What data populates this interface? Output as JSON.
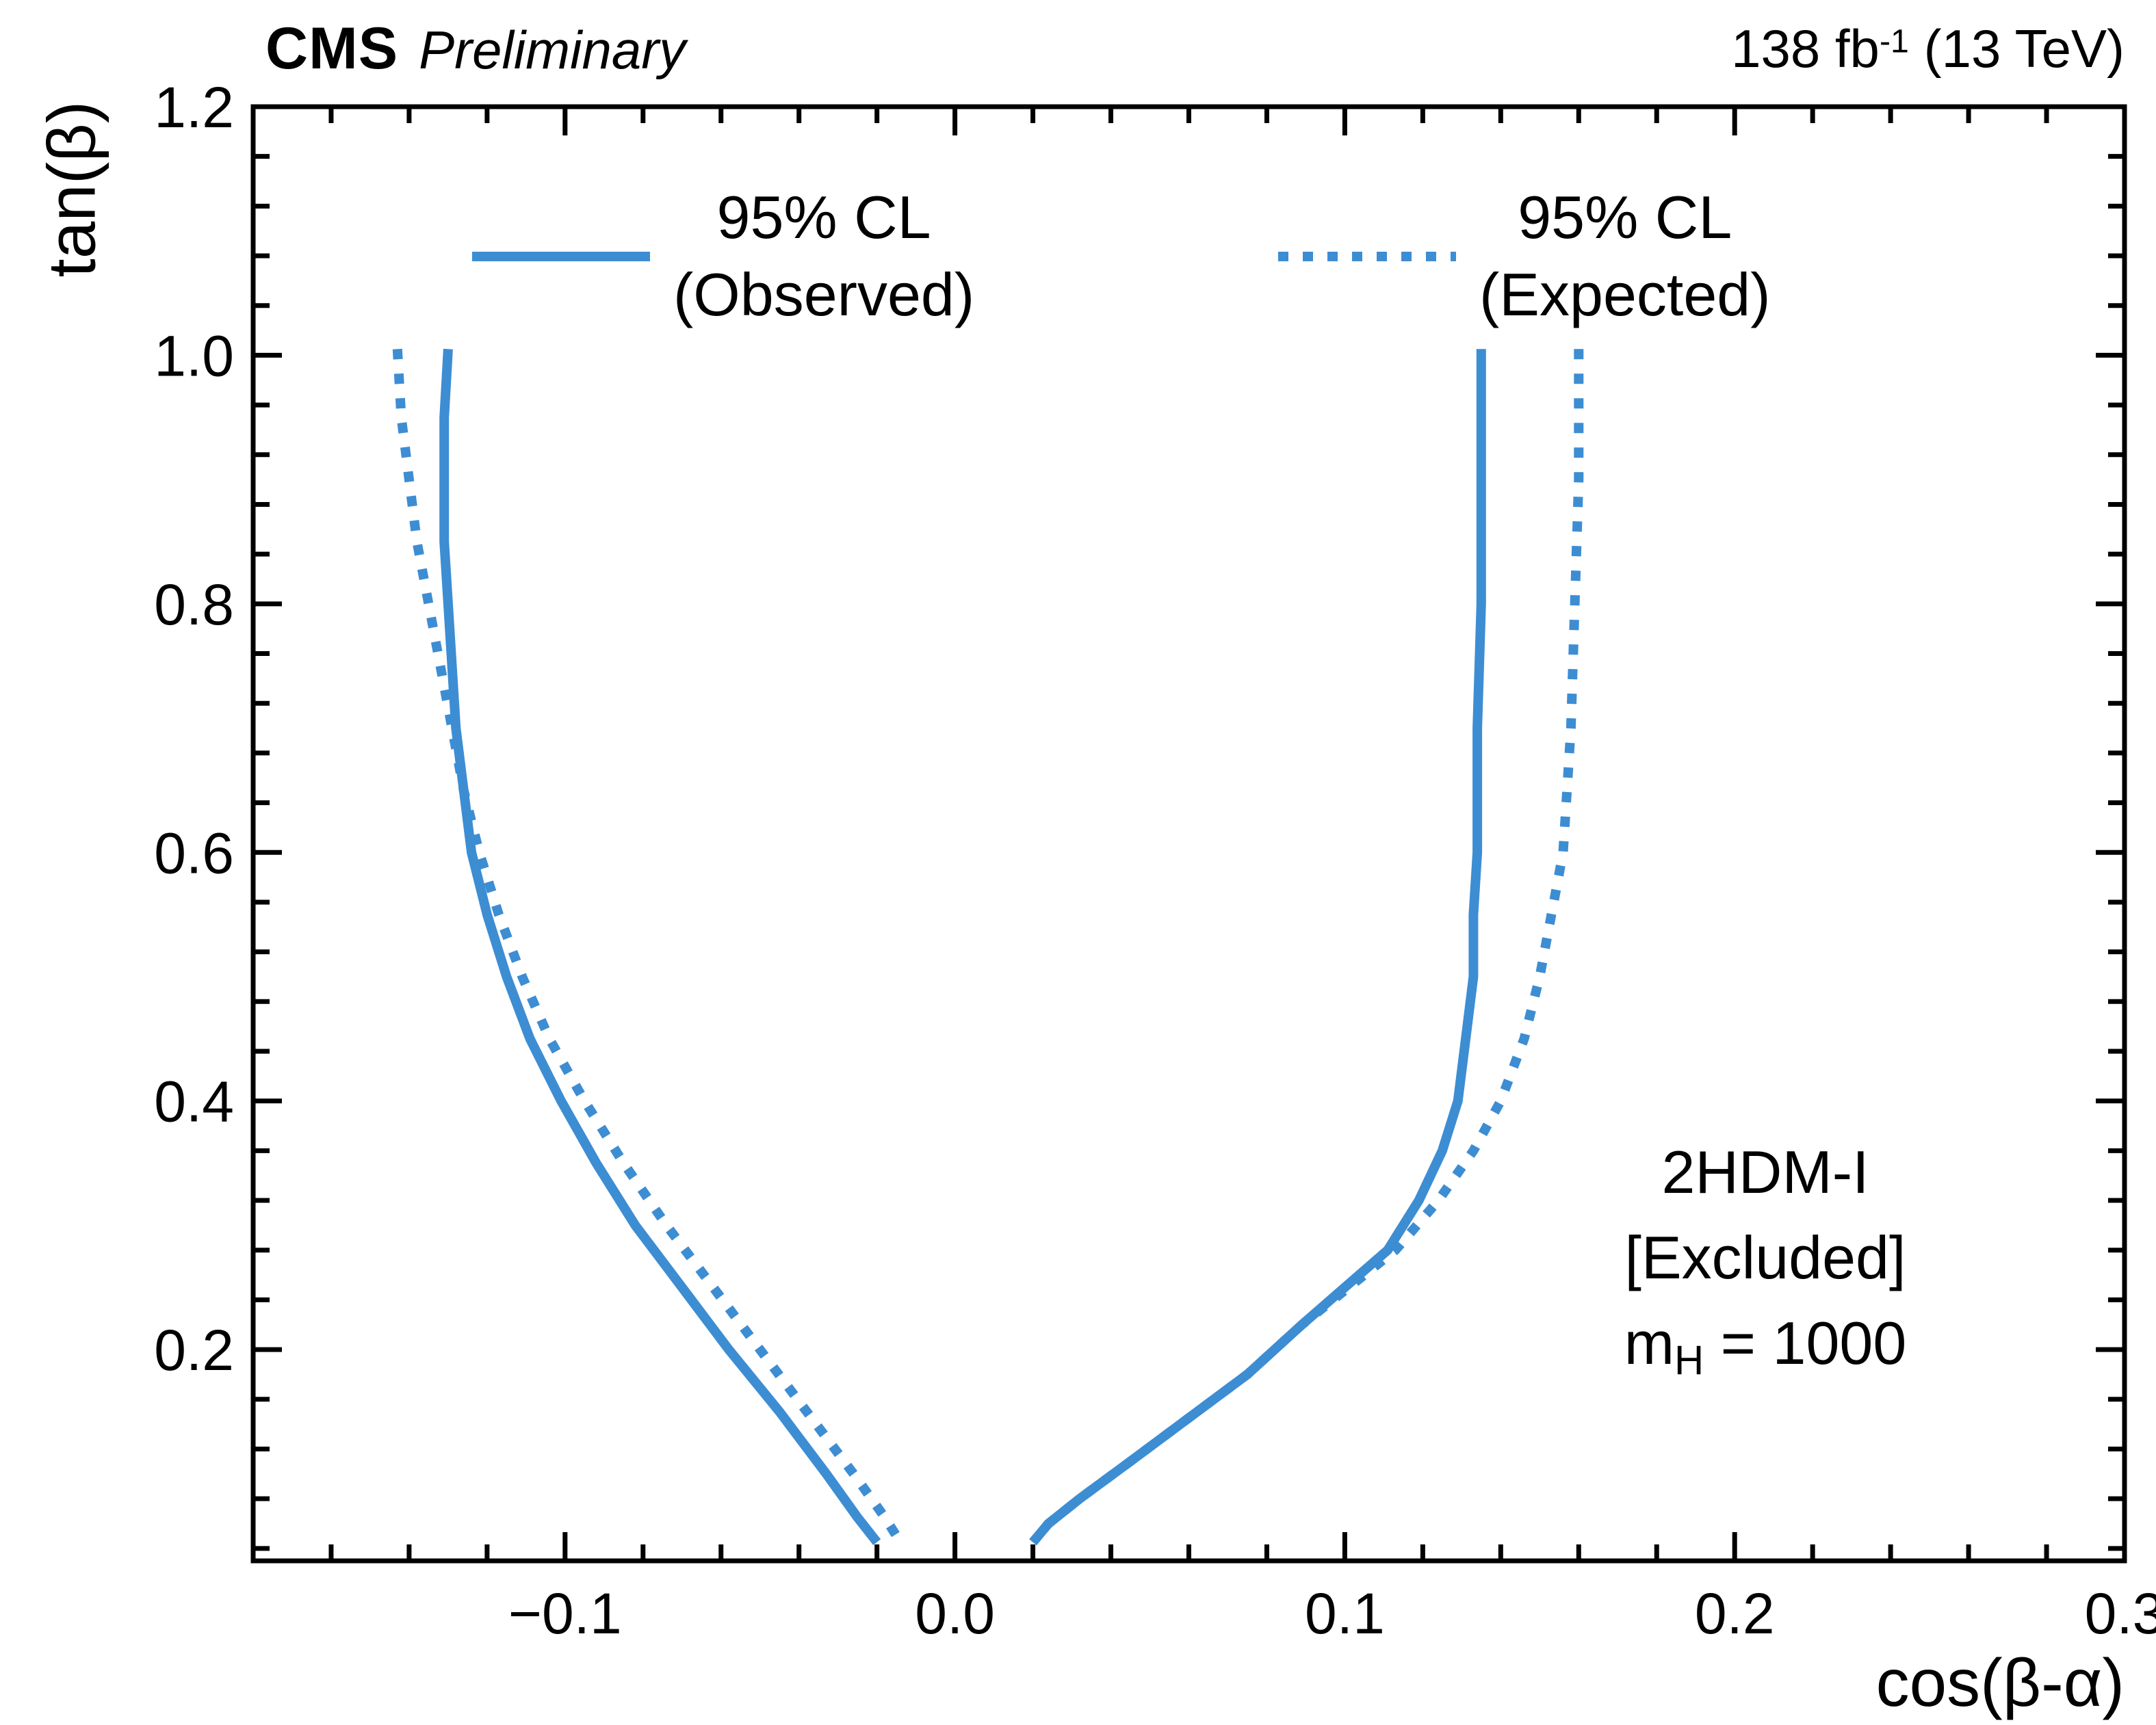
{
  "header": {
    "experiment": "CMS",
    "status": "Preliminary",
    "lumi_prefix": "138 fb",
    "lumi_sup": "-1",
    "lumi_suffix": " (13 TeV)"
  },
  "axes": {
    "x_label": "cos(β-α)",
    "y_label": "tan(β)"
  },
  "legend": {
    "observed": {
      "line1": "95% CL",
      "line2": "(Observed)"
    },
    "expected": {
      "line1": "95% CL",
      "line2": "(Expected)"
    }
  },
  "annotation": {
    "line1": "2HDM-I",
    "line2": "[Excluded]",
    "mass_prefix": "m",
    "mass_sub": "H",
    "mass_suffix": " = 1000"
  },
  "colors": {
    "curve": "#3d8dd3",
    "axis": "#000000"
  },
  "chart_data": {
    "type": "line",
    "title": "CMS Preliminary 138 fb-1 (13 TeV)",
    "xlabel": "cos(β-α)",
    "ylabel": "tan(β)",
    "xlim": [
      -0.18,
      0.3
    ],
    "ylim": [
      0.03,
      1.2
    ],
    "grid": false,
    "legend_position": "top-inside",
    "xticks": {
      "values": [
        -0.1,
        0.0,
        0.1,
        0.2,
        0.3
      ],
      "labels": [
        "−0.1",
        "0.0",
        "0.1",
        "0.2",
        "0.3"
      ],
      "minor_step": 0.02
    },
    "yticks": {
      "values": [
        0.2,
        0.4,
        0.6,
        0.8,
        1.0,
        1.2
      ],
      "labels": [
        "0.2",
        "0.4",
        "0.6",
        "0.8",
        "1.0",
        "1.2"
      ],
      "minor_step": 0.04
    },
    "series": [
      {
        "name": "95% CL (Observed) left branch",
        "key": "observed-left",
        "style": "solid",
        "color": "#3d8dd3",
        "points": [
          [
            -0.13,
            1.005
          ],
          [
            -0.131,
            0.95
          ],
          [
            -0.131,
            0.9
          ],
          [
            -0.131,
            0.85
          ],
          [
            -0.13,
            0.8
          ],
          [
            -0.129,
            0.75
          ],
          [
            -0.128,
            0.7
          ],
          [
            -0.126,
            0.65
          ],
          [
            -0.124,
            0.6
          ],
          [
            -0.12,
            0.55
          ],
          [
            -0.115,
            0.5
          ],
          [
            -0.109,
            0.45
          ],
          [
            -0.101,
            0.4
          ],
          [
            -0.092,
            0.35
          ],
          [
            -0.082,
            0.3
          ],
          [
            -0.07,
            0.25
          ],
          [
            -0.058,
            0.2
          ],
          [
            -0.045,
            0.15
          ],
          [
            -0.033,
            0.1
          ],
          [
            -0.025,
            0.065
          ],
          [
            -0.02,
            0.045
          ]
        ]
      },
      {
        "name": "95% CL (Observed) right branch",
        "key": "observed-right",
        "style": "solid",
        "color": "#3d8dd3",
        "points": [
          [
            0.135,
            1.005
          ],
          [
            0.135,
            0.9
          ],
          [
            0.135,
            0.8
          ],
          [
            0.134,
            0.7
          ],
          [
            0.134,
            0.6
          ],
          [
            0.133,
            0.55
          ],
          [
            0.133,
            0.5
          ],
          [
            0.131,
            0.45
          ],
          [
            0.129,
            0.4
          ],
          [
            0.125,
            0.36
          ],
          [
            0.119,
            0.32
          ],
          [
            0.111,
            0.28
          ],
          [
            0.1,
            0.25
          ],
          [
            0.089,
            0.22
          ],
          [
            0.075,
            0.18
          ],
          [
            0.06,
            0.145
          ],
          [
            0.045,
            0.11
          ],
          [
            0.032,
            0.08
          ],
          [
            0.024,
            0.06
          ],
          [
            0.02,
            0.045
          ]
        ]
      },
      {
        "name": "95% CL (Expected) left branch",
        "key": "expected-left",
        "style": "dotted",
        "color": "#3d8dd3",
        "points": [
          [
            -0.143,
            1.005
          ],
          [
            -0.142,
            0.95
          ],
          [
            -0.14,
            0.9
          ],
          [
            -0.138,
            0.85
          ],
          [
            -0.135,
            0.8
          ],
          [
            -0.132,
            0.75
          ],
          [
            -0.129,
            0.7
          ],
          [
            -0.126,
            0.65
          ],
          [
            -0.122,
            0.6
          ],
          [
            -0.117,
            0.55
          ],
          [
            -0.111,
            0.5
          ],
          [
            -0.104,
            0.45
          ],
          [
            -0.095,
            0.4
          ],
          [
            -0.085,
            0.35
          ],
          [
            -0.074,
            0.3
          ],
          [
            -0.062,
            0.25
          ],
          [
            -0.05,
            0.2
          ],
          [
            -0.038,
            0.15
          ],
          [
            -0.026,
            0.1
          ],
          [
            -0.018,
            0.065
          ],
          [
            -0.014,
            0.045
          ]
        ]
      },
      {
        "name": "95% CL (Expected) right branch",
        "key": "expected-right",
        "style": "dotted",
        "color": "#3d8dd3",
        "points": [
          [
            0.16,
            1.005
          ],
          [
            0.16,
            0.9
          ],
          [
            0.159,
            0.8
          ],
          [
            0.158,
            0.7
          ],
          [
            0.156,
            0.6
          ],
          [
            0.153,
            0.55
          ],
          [
            0.15,
            0.5
          ],
          [
            0.146,
            0.45
          ],
          [
            0.14,
            0.4
          ],
          [
            0.133,
            0.36
          ],
          [
            0.124,
            0.32
          ],
          [
            0.113,
            0.28
          ],
          [
            0.101,
            0.25
          ],
          [
            0.089,
            0.22
          ],
          [
            0.075,
            0.18
          ],
          [
            0.06,
            0.145
          ],
          [
            0.045,
            0.11
          ],
          [
            0.032,
            0.08
          ],
          [
            0.024,
            0.06
          ],
          [
            0.02,
            0.045
          ]
        ]
      }
    ],
    "annotations": [
      "2HDM-I",
      "[Excluded]",
      "mH = 1000"
    ]
  }
}
